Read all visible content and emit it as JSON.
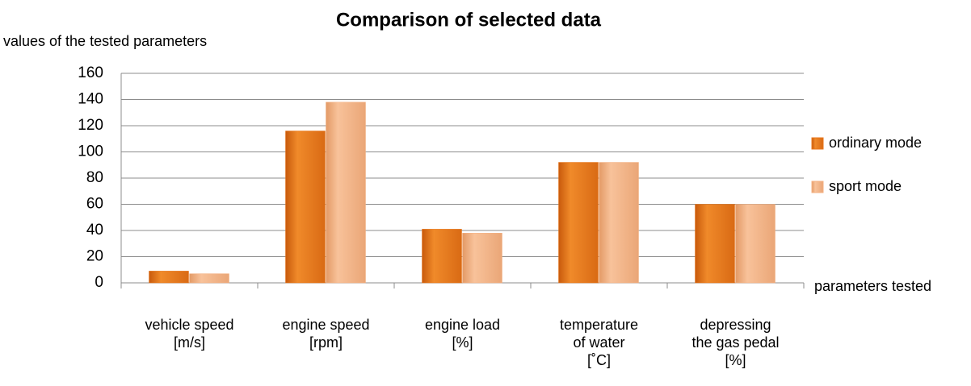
{
  "chart_data": {
    "type": "bar",
    "title": "Comparison of selected data",
    "y_label": "values of the tested parameters",
    "x_label": "parameters tested",
    "categories": [
      [
        "vehicle speed",
        "[m/s]"
      ],
      [
        "engine speed",
        "[rpm]"
      ],
      [
        "engine load",
        "[%]"
      ],
      [
        "temperature",
        "of water",
        "[˚C]"
      ],
      [
        "depressing",
        "the gas pedal",
        "[%]"
      ]
    ],
    "series": [
      {
        "name": "ordinary mode",
        "color": "#e8761a",
        "values": [
          9,
          116,
          41,
          92,
          60
        ]
      },
      {
        "name": "sport mode",
        "color": "#f4b183",
        "values": [
          7,
          138,
          38,
          92,
          60
        ]
      }
    ],
    "ylim": [
      0,
      160
    ],
    "yticks": [
      0,
      20,
      40,
      60,
      80,
      100,
      120,
      140,
      160
    ],
    "grid": true,
    "legend": "right"
  }
}
